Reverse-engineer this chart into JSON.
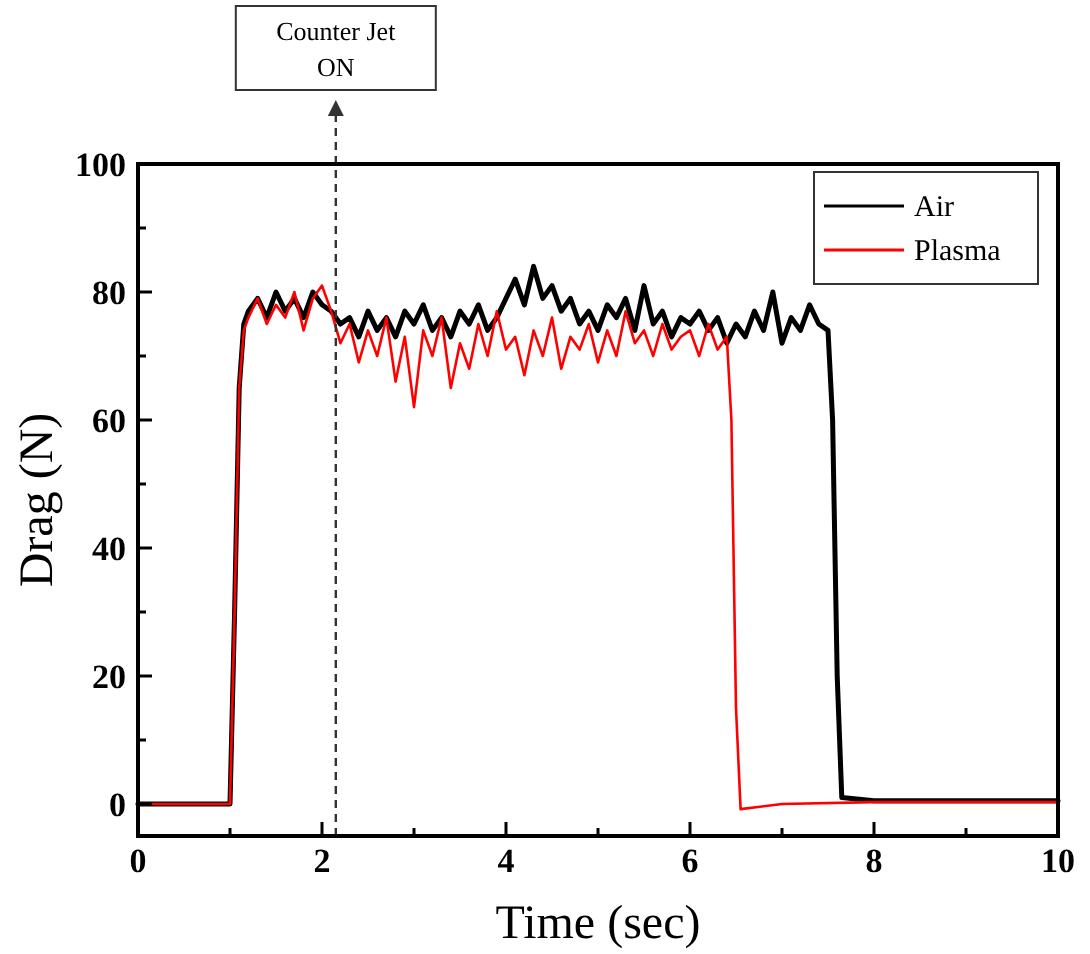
{
  "chart_data": {
    "type": "line",
    "xlabel": "Time (sec)",
    "ylabel": "Drag (N)",
    "xlim": [
      0,
      10
    ],
    "ylim": [
      -5,
      100
    ],
    "xticks": [
      0,
      {
        "value": 1,
        "label": null
      },
      2,
      {
        "value": 3,
        "label": null
      },
      4,
      {
        "value": 5,
        "label": null
      },
      6,
      {
        "value": 7,
        "label": null
      },
      8,
      {
        "value": 9,
        "label": null
      },
      10
    ],
    "yticks": [
      0,
      {
        "value": 10,
        "label": null
      },
      20,
      {
        "value": 30,
        "label": null
      },
      40,
      {
        "value": 50,
        "label": null
      },
      60,
      {
        "value": 70,
        "label": null
      },
      80,
      {
        "value": 90,
        "label": null
      },
      100
    ],
    "grid": false,
    "legend": "top right",
    "line_style": "solid",
    "ref_lines": [
      {
        "axis": "x",
        "value": 2.15,
        "label": "Counter Jet ON",
        "line_style": "dashed",
        "color": "#333333"
      }
    ],
    "series": [
      {
        "name": "Air",
        "color": "#000000",
        "x": [
          0,
          1.0,
          1.05,
          1.1,
          1.15,
          1.2,
          1.3,
          1.4,
          1.5,
          1.6,
          1.7,
          1.8,
          1.9,
          2.0,
          2.1,
          2.2,
          2.3,
          2.4,
          2.5,
          2.6,
          2.7,
          2.8,
          2.9,
          3.0,
          3.1,
          3.2,
          3.3,
          3.4,
          3.5,
          3.6,
          3.7,
          3.8,
          3.9,
          4.0,
          4.1,
          4.2,
          4.3,
          4.4,
          4.5,
          4.6,
          4.7,
          4.8,
          4.9,
          5.0,
          5.1,
          5.2,
          5.3,
          5.4,
          5.5,
          5.6,
          5.7,
          5.8,
          5.9,
          6.0,
          6.1,
          6.2,
          6.3,
          6.4,
          6.5,
          6.6,
          6.7,
          6.8,
          6.9,
          7.0,
          7.1,
          7.2,
          7.3,
          7.4,
          7.5,
          7.55,
          7.6,
          7.65,
          8,
          9,
          10
        ],
        "values": [
          0,
          0,
          30,
          65,
          75,
          77,
          79,
          76,
          80,
          77,
          79,
          76,
          80,
          78,
          77,
          75,
          76,
          73,
          77,
          74,
          76,
          73,
          77,
          75,
          78,
          74,
          76,
          73,
          77,
          75,
          78,
          74,
          76,
          79,
          82,
          78,
          84,
          79,
          81,
          77,
          79,
          75,
          77,
          74,
          78,
          76,
          79,
          74,
          81,
          75,
          77,
          73,
          76,
          75,
          77,
          74,
          76,
          72,
          75,
          73,
          77,
          74,
          80,
          72,
          76,
          74,
          78,
          75,
          74,
          60,
          20,
          1,
          0.5,
          0.5,
          0.5
        ]
      },
      {
        "name": "Plasma",
        "color": "#ff0000",
        "x": [
          0,
          1.0,
          1.05,
          1.1,
          1.15,
          1.2,
          1.3,
          1.4,
          1.5,
          1.6,
          1.7,
          1.8,
          1.9,
          2.0,
          2.1,
          2.2,
          2.3,
          2.4,
          2.5,
          2.6,
          2.7,
          2.8,
          2.9,
          3.0,
          3.1,
          3.2,
          3.3,
          3.4,
          3.5,
          3.6,
          3.7,
          3.8,
          3.9,
          4.0,
          4.1,
          4.2,
          4.3,
          4.4,
          4.5,
          4.6,
          4.7,
          4.8,
          4.9,
          5.0,
          5.1,
          5.2,
          5.3,
          5.4,
          5.5,
          5.6,
          5.7,
          5.8,
          5.9,
          6.0,
          6.1,
          6.2,
          6.3,
          6.4,
          6.45,
          6.5,
          6.55,
          7,
          8,
          10
        ],
        "values": [
          0,
          0,
          30,
          65,
          74,
          76,
          79,
          75,
          78,
          76,
          80,
          74,
          79,
          81,
          77,
          72,
          75,
          69,
          74,
          70,
          76,
          66,
          73,
          62,
          74,
          70,
          76,
          65,
          72,
          68,
          75,
          70,
          77,
          71,
          73,
          67,
          74,
          70,
          76,
          68,
          73,
          71,
          75,
          69,
          74,
          70,
          77,
          72,
          74,
          70,
          75,
          71,
          73,
          74,
          70,
          75,
          71,
          73,
          60,
          15,
          -0.8,
          0,
          0.3,
          0.3
        ]
      }
    ]
  }
}
